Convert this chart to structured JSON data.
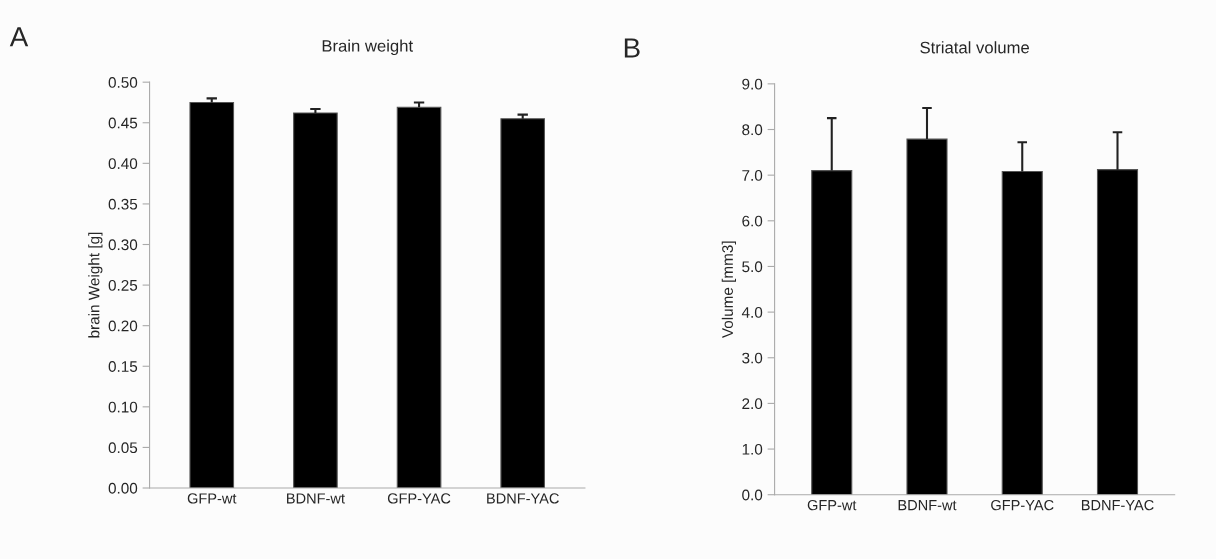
{
  "chart_data": [
    {
      "type": "bar",
      "title": "Brain weight",
      "ylabel": "brain Weight [g]",
      "annotations": [
        "A"
      ],
      "categories": [
        "GFP-wt",
        "BDNF-wt",
        "GFP-YAC",
        "BDNF-YAC"
      ],
      "values": [
        0.475,
        0.462,
        0.469,
        0.455
      ],
      "color": "#000000",
      "errors": [
        [
          0.475,
          0.48
        ],
        [
          0.462,
          0.467
        ],
        [
          0.469,
          0.475
        ],
        [
          0.455,
          0.46
        ]
      ],
      "ylim": [
        0,
        0.5
      ],
      "yticks": [
        {
          "value": 0,
          "label": "0.00"
        },
        {
          "value": 0.05,
          "label": "0.05"
        },
        {
          "value": 0.1,
          "label": "0.10"
        },
        {
          "value": 0.15,
          "label": "0.15"
        },
        {
          "value": 0.2,
          "label": "0.20"
        },
        {
          "value": 0.25,
          "label": "0.25"
        },
        {
          "value": 0.3,
          "label": "0.30"
        },
        {
          "value": 0.35,
          "label": "0.35"
        },
        {
          "value": 0.4,
          "label": "0.40"
        },
        {
          "value": 0.45,
          "label": "0.45"
        },
        {
          "value": 0.5,
          "label": "0.50"
        }
      ],
      "grid": false
    },
    {
      "type": "bar",
      "title": "Striatal volume",
      "ylabel": "Volume [mm3]",
      "annotations": [
        "B"
      ],
      "categories": [
        "GFP-wt",
        "BDNF-wt",
        "GFP-YAC",
        "BDNF-YAC"
      ],
      "values": [
        7.1,
        7.79,
        7.08,
        7.12
      ],
      "color": "#000000",
      "errors": [
        [
          7.1,
          8.25
        ],
        [
          7.79,
          8.47
        ],
        [
          7.08,
          7.72
        ],
        [
          7.12,
          7.94
        ]
      ],
      "ylim": [
        0,
        9
      ],
      "yticks": [
        {
          "value": 0,
          "label": "0.0"
        },
        {
          "value": 1,
          "label": "1.0"
        },
        {
          "value": 2,
          "label": "2.0"
        },
        {
          "value": 3,
          "label": "3.0"
        },
        {
          "value": 4,
          "label": "4.0"
        },
        {
          "value": 5,
          "label": "5.0"
        },
        {
          "value": 6,
          "label": "6.0"
        },
        {
          "value": 7,
          "label": "7.0"
        },
        {
          "value": 8,
          "label": "8.0"
        },
        {
          "value": 9,
          "label": "9.0"
        }
      ],
      "grid": false
    }
  ]
}
